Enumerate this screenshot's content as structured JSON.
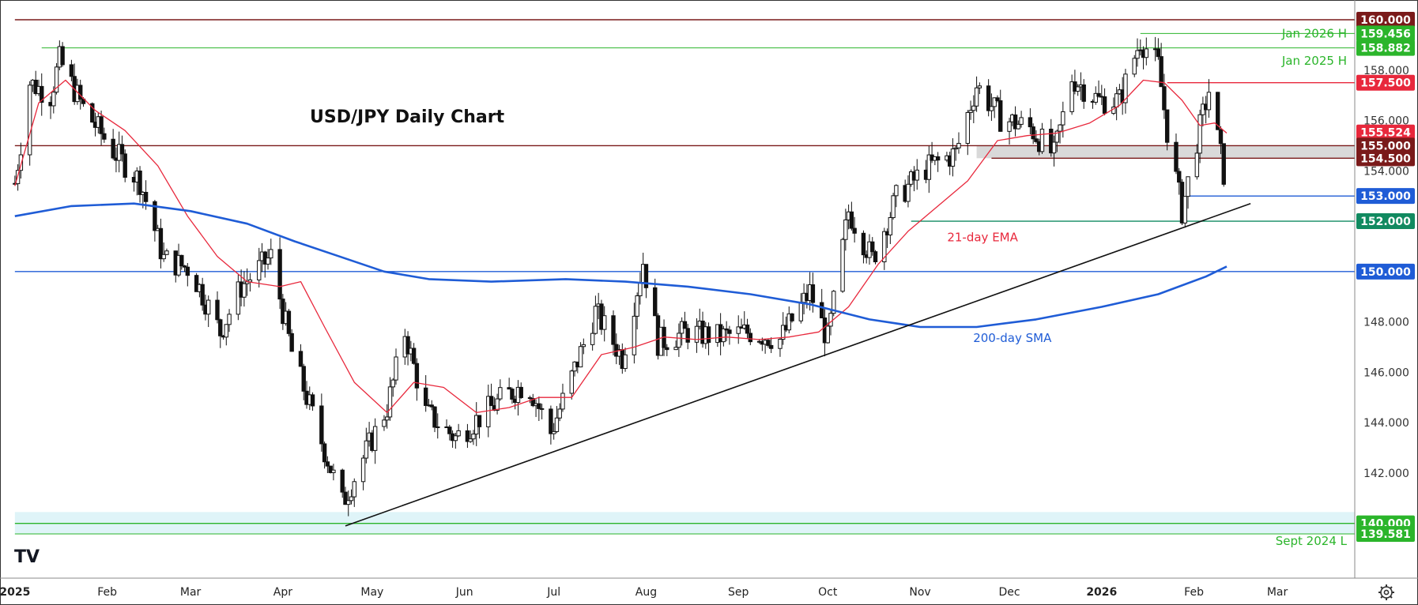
{
  "chart_data": {
    "type": "candlestick",
    "title": "USD/JPY Daily Chart",
    "brand": "TV",
    "ylim": [
      138.6,
      161.0
    ],
    "x_axis_labels": [
      {
        "label": "2025",
        "date": "2025-01-01",
        "bold": true
      },
      {
        "label": "Feb",
        "date": "2025-02-01"
      },
      {
        "label": "Mar",
        "date": "2025-03-01"
      },
      {
        "label": "Apr",
        "date": "2025-04-01"
      },
      {
        "label": "May",
        "date": "2025-05-01"
      },
      {
        "label": "Jun",
        "date": "2025-06-01"
      },
      {
        "label": "Jul",
        "date": "2025-07-01"
      },
      {
        "label": "Aug",
        "date": "2025-08-01"
      },
      {
        "label": "Sep",
        "date": "2025-09-01"
      },
      {
        "label": "Oct",
        "date": "2025-10-01"
      },
      {
        "label": "Nov",
        "date": "2025-11-01"
      },
      {
        "label": "Dec",
        "date": "2025-12-01"
      },
      {
        "label": "2026",
        "date": "2026-01-01",
        "bold": true
      },
      {
        "label": "Feb",
        "date": "2026-02-01"
      },
      {
        "label": "Mar",
        "date": "2026-03-01"
      }
    ],
    "y_axis_ticks": [
      "158.000",
      "156.000",
      "154.000",
      "148.000",
      "146.000",
      "144.000",
      "142.000"
    ],
    "price_tags": [
      {
        "label": "160.000",
        "value": 160.0,
        "color": "#7a1a1a"
      },
      {
        "label": "159.456",
        "value": 159.456,
        "color": "#2bb52b"
      },
      {
        "label": "158.882",
        "value": 158.882,
        "color": "#2bb52b"
      },
      {
        "label": "157.500",
        "value": 157.5,
        "color": "#e8283c"
      },
      {
        "label": "155.524",
        "value": 155.524,
        "color": "#e8283c"
      },
      {
        "label": "155.000",
        "value": 155.0,
        "color": "#7a1a1a"
      },
      {
        "label": "154.500",
        "value": 154.5,
        "color": "#7a1a1a"
      },
      {
        "label": "153.000",
        "value": 153.0,
        "color": "#1f5cd6"
      },
      {
        "label": "152.000",
        "value": 152.0,
        "color": "#118a60"
      },
      {
        "label": "150.000",
        "value": 150.0,
        "color": "#1f5cd6"
      },
      {
        "label": "140.000",
        "value": 140.0,
        "color": "#2bb52b"
      },
      {
        "label": "139.581",
        "value": 139.581,
        "color": "#2bb52b"
      }
    ],
    "horizontal_levels": [
      {
        "value": 160.0,
        "color": "#7a1a1a",
        "from": "2025-01-01",
        "width": 1.4
      },
      {
        "value": 159.456,
        "color": "#2bb52b",
        "from": "2026-01-14",
        "width": 1
      },
      {
        "value": 158.882,
        "color": "#2bb52b",
        "from": "2025-01-10",
        "width": 1
      },
      {
        "value": 157.5,
        "color": "#e8283c",
        "from": "2026-01-23",
        "width": 1.4
      },
      {
        "value": 155.0,
        "color": "#7a1a1a",
        "from": "2025-01-01",
        "width": 1.4
      },
      {
        "value": 154.5,
        "color": "#7a1a1a",
        "from": "2025-11-25",
        "width": 1.4
      },
      {
        "value": 153.0,
        "color": "#1f5cd6",
        "from": "2026-01-30",
        "width": 1.4
      },
      {
        "value": 152.0,
        "color": "#118a60",
        "from": "2025-10-29",
        "width": 1.4
      },
      {
        "value": 150.0,
        "color": "#1f5cd6",
        "from": "2025-01-01",
        "width": 1.4
      },
      {
        "value": 140.0,
        "color": "#2bb52b",
        "from": "2025-01-01",
        "width": 1.4
      },
      {
        "value": 139.581,
        "color": "#2bb52b",
        "from": "2025-01-01",
        "width": 1
      }
    ],
    "zones": [
      {
        "from_value": 154.5,
        "to_value": 155.0,
        "start": "2025-11-20",
        "color": "#d9d9d9"
      },
      {
        "from_value": 139.581,
        "to_value": 140.45,
        "start": "2025-01-01",
        "color": "#dff4f8"
      }
    ],
    "annotations": [
      {
        "text": "Jan 2026 H",
        "value": 159.456,
        "color": "#2bb52b"
      },
      {
        "text": "Jan 2025 H",
        "value": 158.4,
        "color": "#2bb52b"
      },
      {
        "text": "Sept 2024 L",
        "value": 139.581,
        "color": "#2bb52b"
      },
      {
        "text": "21-day EMA",
        "date": "2025-11-22",
        "value": 151.2,
        "color": "#e8283c"
      },
      {
        "text": "200-day SMA",
        "date": "2025-12-02",
        "value": 147.2,
        "color": "#1f5cd6"
      }
    ],
    "trendline": {
      "start": [
        "2025-04-22",
        139.9
      ],
      "end": [
        "2026-02-20",
        152.7
      ],
      "color": "#111111"
    },
    "series": [
      {
        "name": "21-day EMA",
        "color": "#e8283c",
        "points": [
          [
            "2025-01-01",
            153.4
          ],
          [
            "2025-01-09",
            156.7
          ],
          [
            "2025-01-18",
            157.6
          ],
          [
            "2025-01-28",
            156.4
          ],
          [
            "2025-02-07",
            155.6
          ],
          [
            "2025-02-18",
            154.2
          ],
          [
            "2025-02-28",
            152.2
          ],
          [
            "2025-03-10",
            150.6
          ],
          [
            "2025-03-20",
            149.6
          ],
          [
            "2025-03-31",
            149.4
          ],
          [
            "2025-04-07",
            149.6
          ],
          [
            "2025-04-15",
            147.8
          ],
          [
            "2025-04-25",
            145.6
          ],
          [
            "2025-05-06",
            144.4
          ],
          [
            "2025-05-15",
            145.6
          ],
          [
            "2025-05-25",
            145.4
          ],
          [
            "2025-06-05",
            144.4
          ],
          [
            "2025-06-16",
            144.6
          ],
          [
            "2025-06-26",
            145.0
          ],
          [
            "2025-07-07",
            145.0
          ],
          [
            "2025-07-17",
            146.7
          ],
          [
            "2025-07-28",
            147.0
          ],
          [
            "2025-08-07",
            147.4
          ],
          [
            "2025-08-18",
            147.3
          ],
          [
            "2025-08-28",
            147.4
          ],
          [
            "2025-09-08",
            147.3
          ],
          [
            "2025-09-18",
            147.4
          ],
          [
            "2025-09-28",
            147.6
          ],
          [
            "2025-10-08",
            148.6
          ],
          [
            "2025-10-18",
            150.3
          ],
          [
            "2025-10-28",
            151.6
          ],
          [
            "2025-11-07",
            152.6
          ],
          [
            "2025-11-17",
            153.6
          ],
          [
            "2025-11-27",
            155.2
          ],
          [
            "2025-12-07",
            155.4
          ],
          [
            "2025-12-17",
            155.5
          ],
          [
            "2025-12-28",
            155.9
          ],
          [
            "2026-01-07",
            156.6
          ],
          [
            "2026-01-15",
            157.6
          ],
          [
            "2026-01-22",
            157.5
          ],
          [
            "2026-01-28",
            156.8
          ],
          [
            "2026-02-03",
            155.8
          ],
          [
            "2026-02-08",
            155.9
          ],
          [
            "2026-02-12",
            155.5
          ]
        ]
      },
      {
        "name": "200-day SMA",
        "color": "#1f5cd6",
        "points": [
          [
            "2025-01-01",
            152.2
          ],
          [
            "2025-01-20",
            152.6
          ],
          [
            "2025-02-10",
            152.7
          ],
          [
            "2025-03-01",
            152.4
          ],
          [
            "2025-03-20",
            151.9
          ],
          [
            "2025-04-05",
            151.2
          ],
          [
            "2025-04-20",
            150.6
          ],
          [
            "2025-05-05",
            150.0
          ],
          [
            "2025-05-20",
            149.7
          ],
          [
            "2025-06-10",
            149.6
          ],
          [
            "2025-07-05",
            149.7
          ],
          [
            "2025-07-25",
            149.6
          ],
          [
            "2025-08-15",
            149.4
          ],
          [
            "2025-09-05",
            149.1
          ],
          [
            "2025-09-25",
            148.7
          ],
          [
            "2025-10-15",
            148.1
          ],
          [
            "2025-11-01",
            147.8
          ],
          [
            "2025-11-20",
            147.8
          ],
          [
            "2025-12-10",
            148.1
          ],
          [
            "2026-01-01",
            148.6
          ],
          [
            "2026-01-20",
            149.1
          ],
          [
            "2026-02-05",
            149.8
          ],
          [
            "2026-02-12",
            150.2
          ]
        ]
      }
    ],
    "candles_ohlc_anchor_path": [
      [
        "2025-01-01",
        153.5
      ],
      [
        "2025-01-06",
        157.5
      ],
      [
        "2025-01-13",
        157.0
      ],
      [
        "2025-01-16",
        158.4
      ],
      [
        "2025-01-24",
        156.5
      ],
      [
        "2025-02-03",
        154.8
      ],
      [
        "2025-02-12",
        153.6
      ],
      [
        "2025-02-20",
        150.5
      ],
      [
        "2025-03-01",
        150.1
      ],
      [
        "2025-03-11",
        147.6
      ],
      [
        "2025-03-18",
        149.4
      ],
      [
        "2025-03-28",
        150.6
      ],
      [
        "2025-04-04",
        146.8
      ],
      [
        "2025-04-11",
        144.3
      ],
      [
        "2025-04-21",
        140.8
      ],
      [
        "2025-04-28",
        142.6
      ],
      [
        "2025-05-06",
        144.6
      ],
      [
        "2025-05-12",
        147.6
      ],
      [
        "2025-05-19",
        144.4
      ],
      [
        "2025-05-29",
        143.4
      ],
      [
        "2025-06-06",
        144.2
      ],
      [
        "2025-06-13",
        144.9
      ],
      [
        "2025-06-22",
        145.6
      ],
      [
        "2025-06-30",
        143.6
      ],
      [
        "2025-07-07",
        145.8
      ],
      [
        "2025-07-15",
        148.4
      ],
      [
        "2025-07-24",
        146.6
      ],
      [
        "2025-07-31",
        150.4
      ],
      [
        "2025-08-05",
        147.2
      ],
      [
        "2025-08-15",
        147.6
      ],
      [
        "2025-08-25",
        147.4
      ],
      [
        "2025-09-05",
        147.6
      ],
      [
        "2025-09-15",
        147.3
      ],
      [
        "2025-09-25",
        149.2
      ],
      [
        "2025-10-01",
        147.3
      ],
      [
        "2025-10-08",
        152.4
      ],
      [
        "2025-10-16",
        150.5
      ],
      [
        "2025-10-24",
        152.9
      ],
      [
        "2025-11-03",
        154.1
      ],
      [
        "2025-11-13",
        154.7
      ],
      [
        "2025-11-20",
        157.4
      ],
      [
        "2025-11-28",
        156.1
      ],
      [
        "2025-12-08",
        155.7
      ],
      [
        "2025-12-16",
        154.6
      ],
      [
        "2025-12-22",
        157.7
      ],
      [
        "2025-12-31",
        156.8
      ],
      [
        "2026-01-07",
        156.8
      ],
      [
        "2026-01-14",
        159.2
      ],
      [
        "2026-01-20",
        158.2
      ],
      [
        "2026-01-23",
        155.6
      ],
      [
        "2026-01-28",
        152.4
      ],
      [
        "2026-02-01",
        154.7
      ],
      [
        "2026-02-06",
        157.2
      ],
      [
        "2026-02-10",
        154.6
      ],
      [
        "2026-02-12",
        153.2
      ]
    ]
  }
}
